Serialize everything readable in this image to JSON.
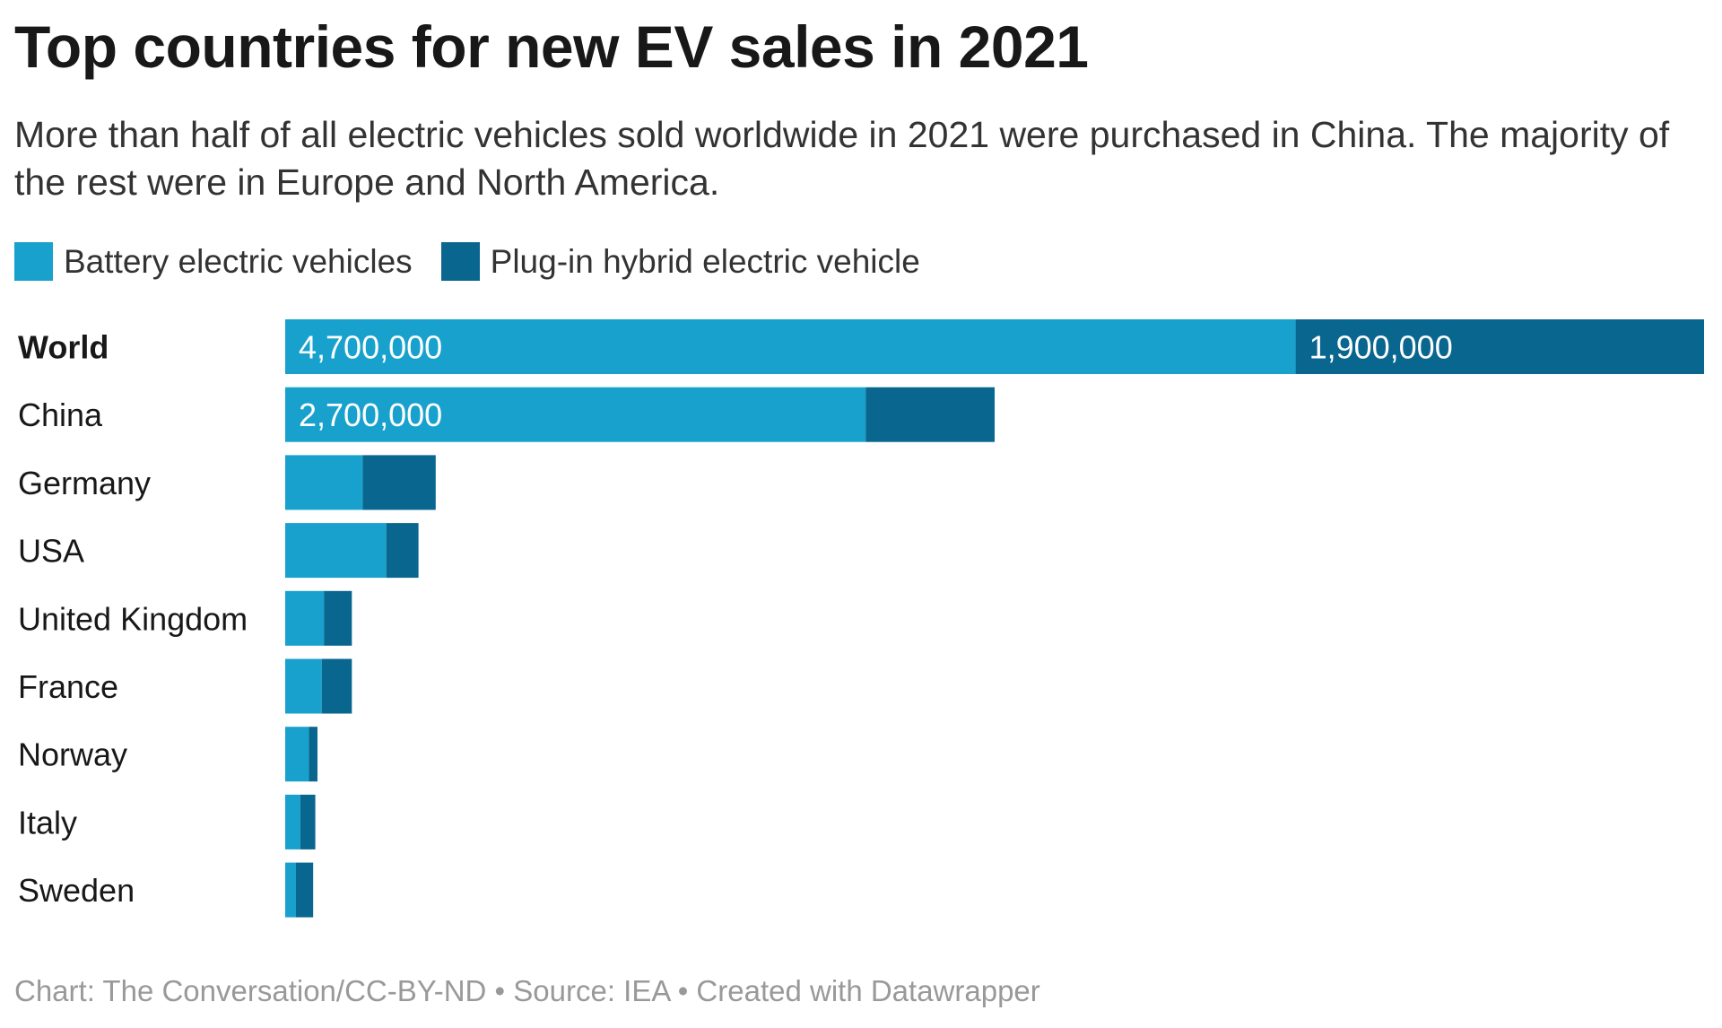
{
  "title": "Top countries for new EV sales in 2021",
  "subtitle": "More than half of all electric vehicles sold worldwide in 2021 were purchased in China. The majority of the rest were in Europe and North America.",
  "footer": "Chart: The Conversation/CC-BY-ND • Source: IEA • Created with Datawrapper",
  "colors": {
    "bev": "#18a1cd",
    "phev": "#09668f"
  },
  "chart_data": {
    "type": "bar",
    "orientation": "horizontal",
    "stacked": true,
    "categories": [
      "World",
      "China",
      "Germany",
      "USA",
      "United Kingdom",
      "France",
      "Norway",
      "Italy",
      "Sweden"
    ],
    "series": [
      {
        "name": "Battery electric vehicles",
        "color": "#18a1cd",
        "values": [
          4700000,
          2700000,
          360000,
          470000,
          180000,
          170000,
          110000,
          70000,
          50000
        ],
        "labels": [
          "4,700,000",
          "2,700,000",
          "",
          "",
          "",
          "",
          "",
          "",
          ""
        ]
      },
      {
        "name": "Plug-in hybrid electric vehicle",
        "color": "#09668f",
        "values": [
          1900000,
          600000,
          340000,
          150000,
          130000,
          140000,
          40000,
          70000,
          80000
        ],
        "labels": [
          "1,900,000",
          "",
          "",
          "",
          "",
          "",
          "",
          "",
          ""
        ]
      }
    ],
    "bold_categories": [
      "World"
    ],
    "xlim": [
      0,
      6600000
    ],
    "grid": false,
    "legend": "top-left"
  }
}
